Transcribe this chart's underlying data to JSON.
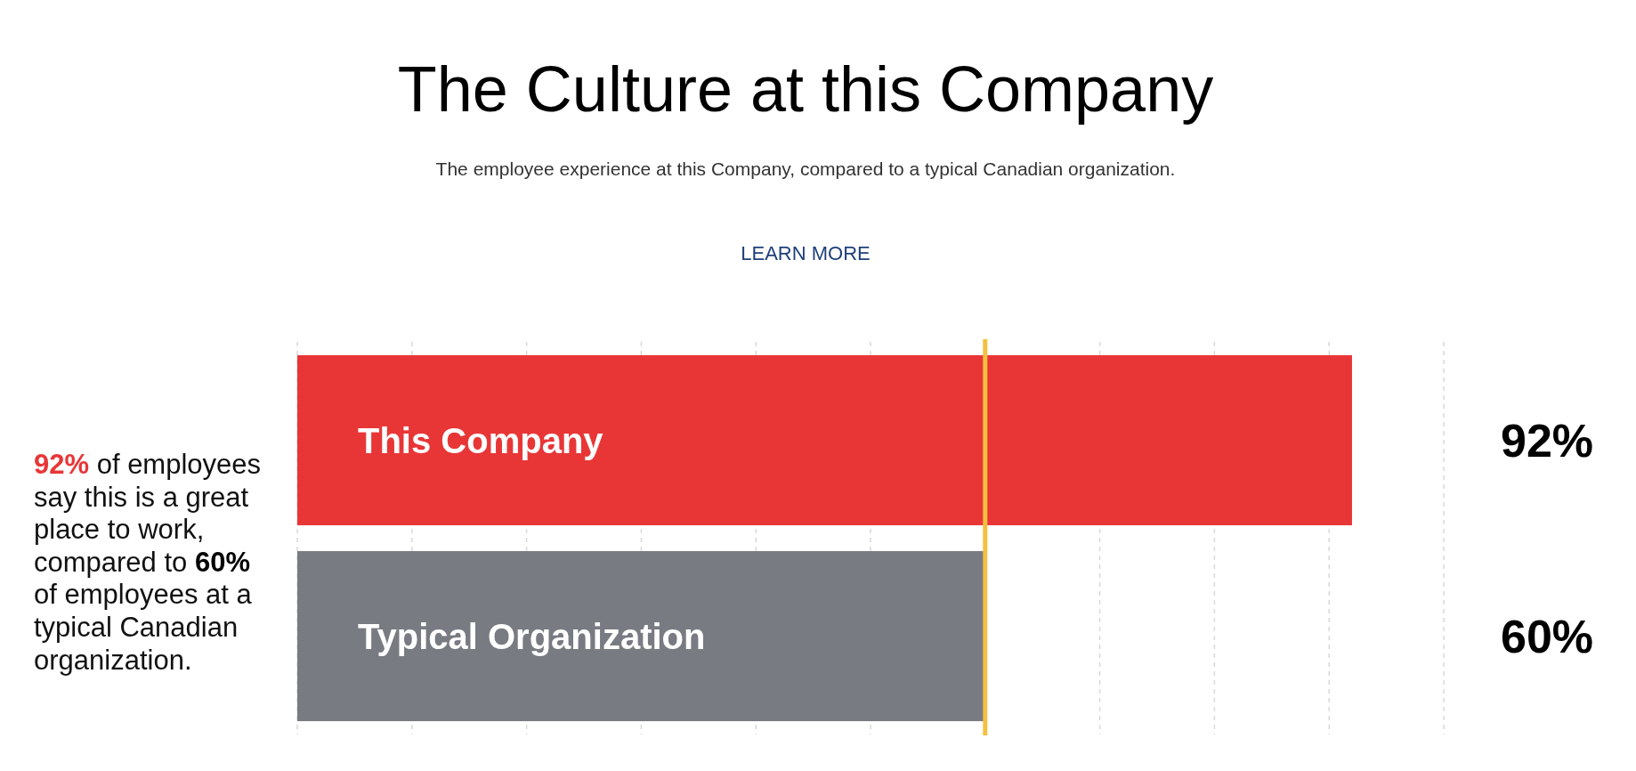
{
  "chart_data": {
    "type": "bar",
    "orientation": "horizontal",
    "title": "The Culture at this Company",
    "subtitle": "The employee experience at this Company, compared to a typical Canadian organization.",
    "categories": [
      "This Company",
      "Typical Organization"
    ],
    "values": [
      92,
      60
    ],
    "colors": [
      "#e83637",
      "#797b82"
    ],
    "value_labels": [
      "92%",
      "60%"
    ],
    "xlim": [
      0,
      100
    ],
    "xticks": [
      {
        "value": 0,
        "label": null
      },
      {
        "value": 10,
        "label": null
      },
      {
        "value": 20,
        "label": null
      },
      {
        "value": 30,
        "label": null
      },
      {
        "value": 40,
        "label": null
      },
      {
        "value": 50,
        "label": null
      },
      {
        "value": 60,
        "label": null
      },
      {
        "value": 70,
        "label": null
      },
      {
        "value": 80,
        "label": null
      },
      {
        "value": 90,
        "label": null
      },
      {
        "value": 100,
        "label": null
      }
    ],
    "tick_labels": "y",
    "grid": "x",
    "ref_lines": [
      {
        "axis": "x",
        "value": 60,
        "color": "#f4c040"
      }
    ],
    "annotations": [
      "LEARN MORE",
      "92% of employees say this is a great place to work, compared to 60% of employees at a typical Canadian organization."
    ]
  }
}
